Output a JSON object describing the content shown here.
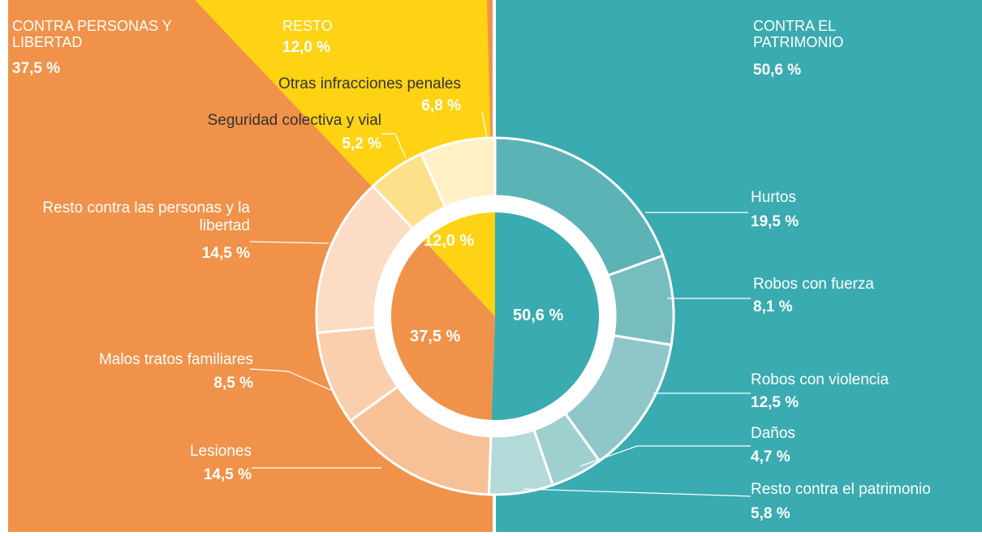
{
  "chart_data": {
    "type": "donut",
    "groups": [
      {
        "name": "CONTRA EL PATRIMONIO",
        "value": 50.6,
        "value_label": "50,6 %",
        "color": "#3aabb0",
        "children": {
          "names": [
            "Hurtos",
            "Robos con fuerza",
            "Robos con violencia",
            "Daños",
            "Resto contra el patrimonio"
          ],
          "values": [
            19.5,
            8.1,
            12.5,
            4.7,
            5.8
          ],
          "value_labels": [
            "19,5 %",
            "8,1 %",
            "12,5 %",
            "4,7 %",
            "5,8 %"
          ],
          "colors": [
            "#5bb3b6",
            "#77bdbe",
            "#8fc7c8",
            "#a0cfcf",
            "#b3d9d9"
          ]
        }
      },
      {
        "name": "CONTRA PERSONAS Y LIBERTAD",
        "value": 37.5,
        "value_label": "37,5 %",
        "color": "#f0924a",
        "children": {
          "names": [
            "Lesiones",
            "Malos tratos familiares",
            "Resto contra las personas y la libertad"
          ],
          "values": [
            14.5,
            8.5,
            14.5
          ],
          "value_labels": [
            "14,5 %",
            "8,5 %",
            "14,5 %"
          ],
          "colors": [
            "#f7c197",
            "#f9cfae",
            "#fbdcc4"
          ]
        }
      },
      {
        "name": "RESTO",
        "value": 12.0,
        "value_label": "12,0 %",
        "color": "#fdd314",
        "children": {
          "names": [
            "Seguridad colectiva y vial",
            "Otras infracciones penales"
          ],
          "values": [
            5.2,
            6.8
          ],
          "value_labels": [
            "5,2 %",
            "6,8 %"
          ],
          "colors": [
            "#fde08a",
            "#fff0c6"
          ]
        }
      }
    ]
  }
}
